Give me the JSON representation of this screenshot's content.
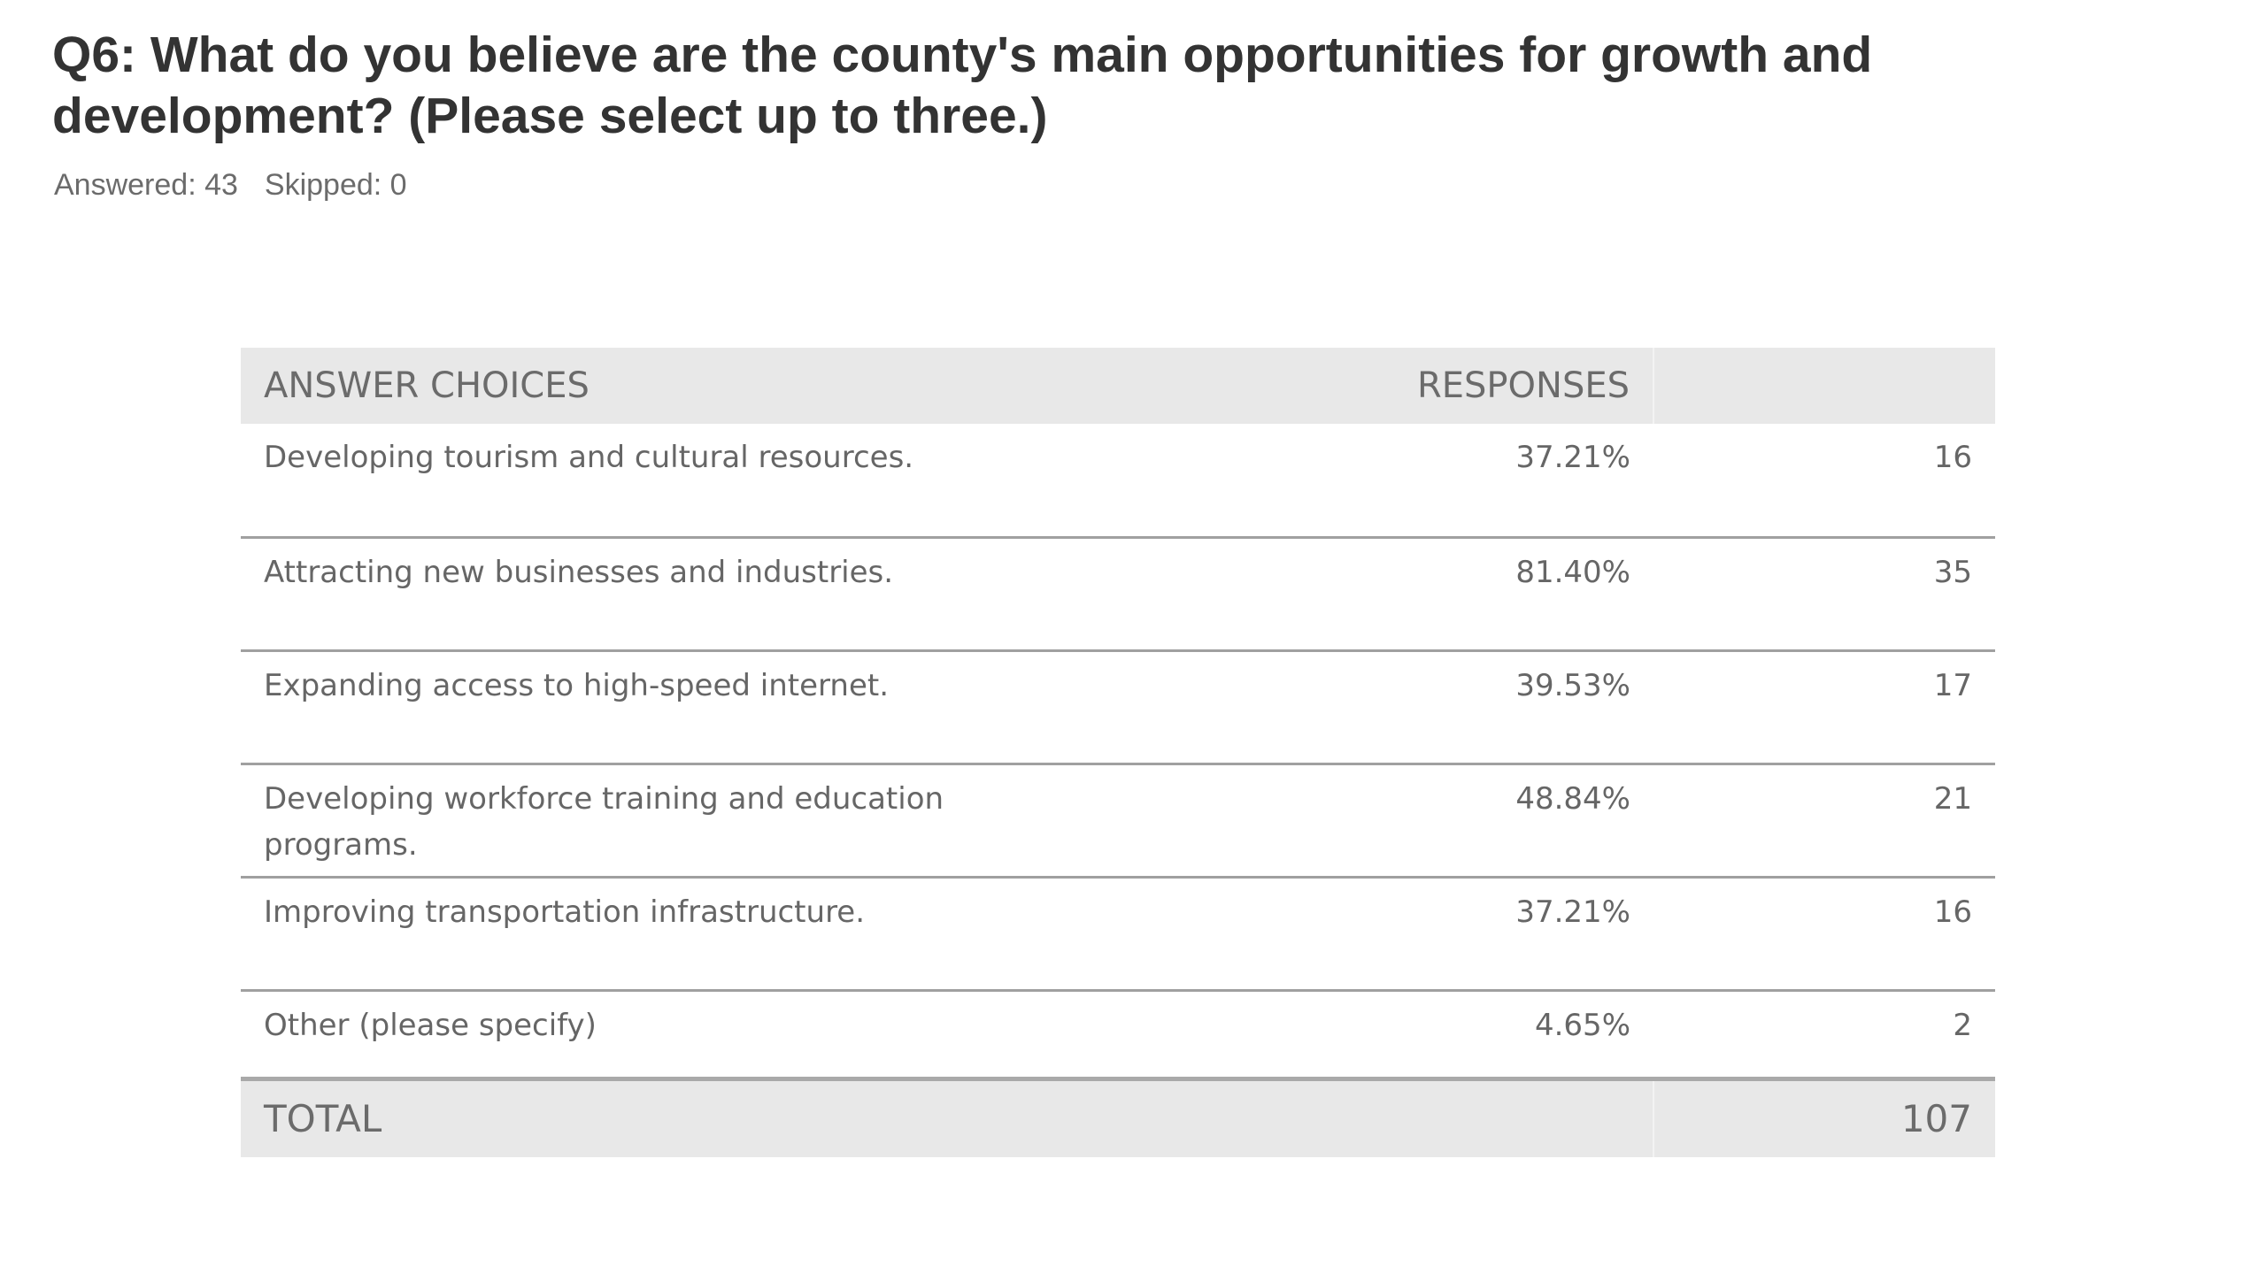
{
  "question": {
    "title": "Q6: What do you believe are the county's main opportunities for growth and development? (Please select up to three.)",
    "answered": "Answered: 43",
    "skipped": "Skipped: 0"
  },
  "table": {
    "headers": {
      "answer_choices": "ANSWER CHOICES",
      "responses": "RESPONSES"
    },
    "rows": [
      {
        "choice": "Developing tourism and cultural resources.",
        "percent": "37.21%",
        "count": "16"
      },
      {
        "choice": "Attracting new businesses and industries.",
        "percent": "81.40%",
        "count": "35"
      },
      {
        "choice": "Expanding access to high-speed internet.",
        "percent": "39.53%",
        "count": "17"
      },
      {
        "choice": "Developing workforce training and education programs.",
        "percent": "48.84%",
        "count": "21"
      },
      {
        "choice": "Improving transportation infrastructure.",
        "percent": "37.21%",
        "count": "16"
      },
      {
        "choice": "Other (please specify)",
        "percent": "4.65%",
        "count": "2"
      }
    ],
    "total": {
      "label": "TOTAL",
      "value": "107"
    }
  }
}
